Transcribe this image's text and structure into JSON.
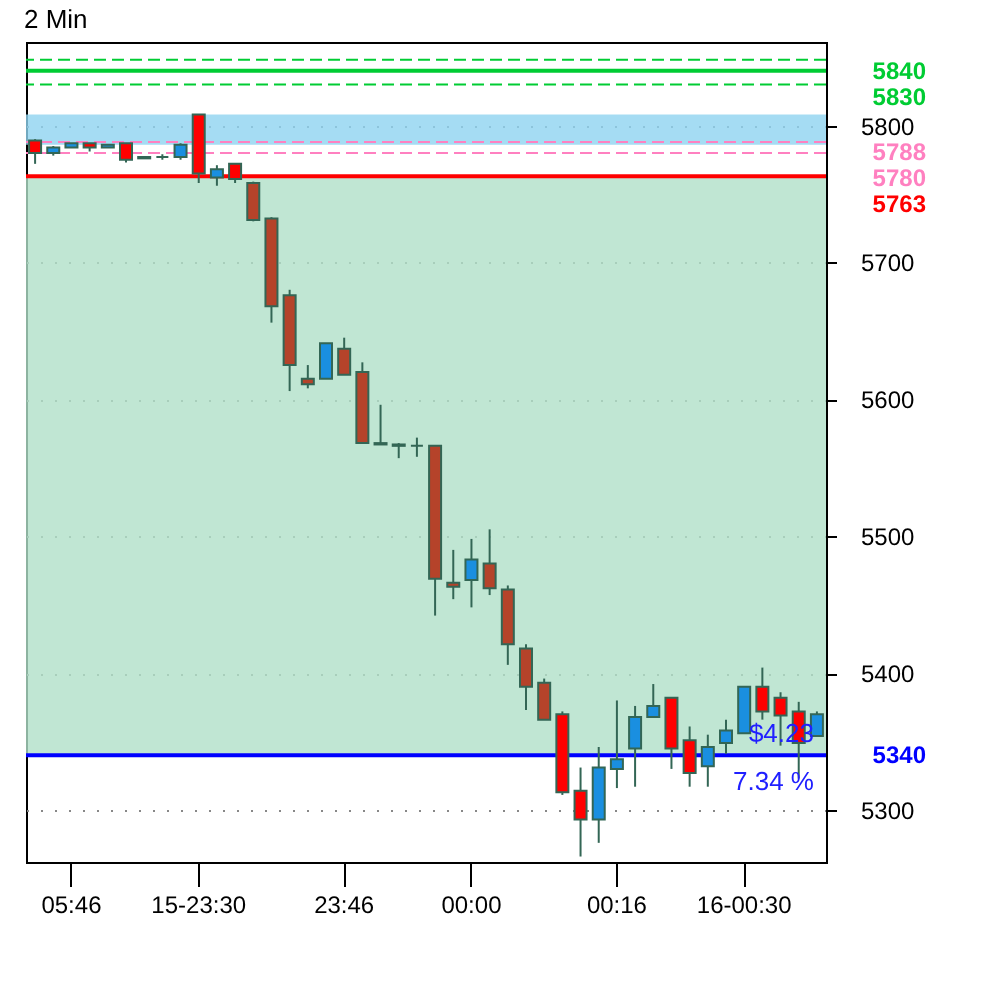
{
  "chart_data": {
    "type": "candlestick",
    "title": "2 Min",
    "categories": [
      null,
      null,
      "05:46",
      null,
      null,
      null,
      null,
      null,
      null,
      "15-23:30",
      null,
      null,
      null,
      null,
      null,
      null,
      null,
      "23:46",
      null,
      null,
      null,
      null,
      null,
      null,
      "00:00",
      null,
      null,
      null,
      null,
      null,
      null,
      null,
      "00:16",
      null,
      null,
      null,
      null,
      null,
      null,
      "16-00:30",
      null,
      null,
      null,
      null
    ],
    "ohlc": [
      [
        5789,
        5790,
        5772,
        5780
      ],
      [
        5780,
        5785,
        5778,
        5784
      ],
      [
        5784,
        5787,
        5784,
        5787
      ],
      [
        5787,
        5787,
        5781,
        5784
      ],
      [
        5784,
        5786,
        5784,
        5786
      ],
      [
        5787,
        5787,
        5773,
        5775
      ],
      [
        5776,
        5777,
        5776,
        5777
      ],
      [
        5777,
        5779,
        5775,
        5777
      ],
      [
        5777,
        5787,
        5775,
        5786
      ],
      [
        5808,
        5808,
        5758,
        5765
      ],
      [
        5762,
        5771,
        5756,
        5768
      ],
      [
        5772,
        5772,
        5758,
        5761
      ],
      [
        5758,
        5759,
        5730,
        5731
      ],
      [
        5732,
        5733,
        5656,
        5668
      ],
      [
        5676,
        5680,
        5606,
        5625
      ],
      [
        5615,
        5625,
        5608,
        5611
      ],
      [
        5615,
        5641,
        5615,
        5641
      ],
      [
        5637,
        5645,
        5618,
        5618
      ],
      [
        5620,
        5627,
        5568,
        5568
      ],
      [
        5567,
        5596,
        5567,
        5568
      ],
      [
        5566,
        5568,
        5557,
        5567
      ],
      [
        5566,
        5572,
        5558,
        5566
      ],
      [
        5566,
        5566,
        5442,
        5469
      ],
      [
        5466,
        5490,
        5454,
        5463
      ],
      [
        5468,
        5498,
        5448,
        5483
      ],
      [
        5480,
        5505,
        5457,
        5462
      ],
      [
        5461,
        5464,
        5406,
        5421
      ],
      [
        5418,
        5421,
        5373,
        5390
      ],
      [
        5393,
        5396,
        5366,
        5366
      ],
      [
        5370,
        5372,
        5311,
        5313
      ],
      [
        5314,
        5331,
        5266,
        5293
      ],
      [
        5293,
        5346,
        5276,
        5331
      ],
      [
        5330,
        5380,
        5316,
        5337
      ],
      [
        5345,
        5376,
        5317,
        5368
      ],
      [
        5368,
        5392,
        5368,
        5376
      ],
      [
        5382,
        5382,
        5330,
        5345
      ],
      [
        5351,
        5361,
        5317,
        5327
      ],
      [
        5332,
        5355,
        5317,
        5346
      ],
      [
        5349,
        5366,
        5341,
        5358
      ],
      [
        5356,
        5390,
        5356,
        5390
      ],
      [
        5390,
        5404,
        5366,
        5372
      ],
      [
        5382,
        5386,
        5347,
        5369
      ],
      [
        5372,
        5379,
        5323,
        5349
      ],
      [
        5354,
        5372,
        5354,
        5370
      ]
    ],
    "colors": [
      "#ff0000",
      "#1a8fe0",
      "#1a8fe0",
      "#ff0000",
      "#1a8fe0",
      "#ff0000",
      "#1a8fe0",
      "#336655",
      "#1a8fe0",
      "#ff0000",
      "#1a8fe0",
      "#ff0000",
      "#b5432a",
      "#b5432a",
      "#b5432a",
      "#b5432a",
      "#1a8fe0",
      "#b5432a",
      "#b5432a",
      "#1a8fe0",
      "#1a8fe0",
      "#336655",
      "#b5432a",
      "#b5432a",
      "#1a8fe0",
      "#b5432a",
      "#b5432a",
      "#b5432a",
      "#b5432a",
      "#ff0000",
      "#ff0000",
      "#1a8fe0",
      "#1a8fe0",
      "#1a8fe0",
      "#1a8fe0",
      "#ff0000",
      "#ff0000",
      "#1a8fe0",
      "#1a8fe0",
      "#1a8fe0",
      "#ff0000",
      "#ff0000",
      "#ff0000",
      "#1a8fe0"
    ],
    "ylim": [
      5262,
      5861
    ],
    "yticks": [
      5300,
      5400,
      5500,
      5600,
      5700,
      5800
    ],
    "grid": true,
    "ref_lines": [
      {
        "axis": "y",
        "value": 5848,
        "color": "#00cc33",
        "line_style": "dashed"
      },
      {
        "axis": "y",
        "value": 5840,
        "label": "5840",
        "color": "#00cc33",
        "line_style": "solid"
      },
      {
        "axis": "y",
        "value": 5830,
        "label": "5830",
        "color": "#00cc33",
        "line_style": "dashed"
      },
      {
        "axis": "y",
        "value": 5788,
        "label": "5788",
        "color": "#ff80c0",
        "line_style": "dashed"
      },
      {
        "axis": "y",
        "value": 5780,
        "label": "5780",
        "color": "#ff80c0",
        "line_style": "dashed"
      },
      {
        "axis": "y",
        "value": 5763,
        "label": "5763",
        "color": "#ff0000",
        "line_style": "solid"
      },
      {
        "axis": "y",
        "value": 5340,
        "label": "5340",
        "color": "#0000ff",
        "line_style": "solid"
      }
    ],
    "bands": [
      {
        "axis": "y",
        "from": 5786,
        "to": 5808,
        "color": "#8fd3f0"
      },
      {
        "axis": "y",
        "from": 5340,
        "to": 5763,
        "color": "#b0e0c8"
      }
    ],
    "annotations": [
      "$4.23",
      "7.34 %"
    ]
  }
}
